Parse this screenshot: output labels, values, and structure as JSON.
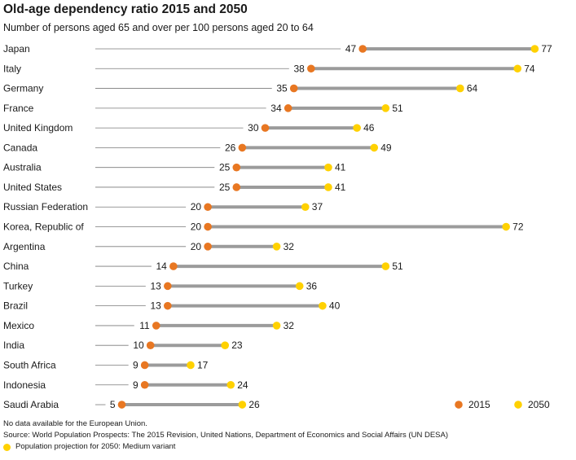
{
  "chart_data": {
    "type": "dot",
    "title": "Old-age dependency ratio 2015 and 2050",
    "subtitle": "Number of persons aged 65 and over per 100 persons aged 20 to 64",
    "series": [
      {
        "name": "2015",
        "color": "#E87722"
      },
      {
        "name": "2050",
        "color": "#FFD100"
      }
    ],
    "rows": [
      {
        "country": "Japan",
        "v2015": 47,
        "v2050": 77
      },
      {
        "country": "Italy",
        "v2015": 38,
        "v2050": 74
      },
      {
        "country": "Germany",
        "v2015": 35,
        "v2050": 64
      },
      {
        "country": "France",
        "v2015": 34,
        "v2050": 51
      },
      {
        "country": "United Kingdom",
        "v2015": 30,
        "v2050": 46
      },
      {
        "country": "Canada",
        "v2015": 26,
        "v2050": 49
      },
      {
        "country": "Australia",
        "v2015": 25,
        "v2050": 41
      },
      {
        "country": "United States",
        "v2015": 25,
        "v2050": 41
      },
      {
        "country": "Russian Federation",
        "v2015": 20,
        "v2050": 37
      },
      {
        "country": "Korea, Republic of",
        "v2015": 20,
        "v2050": 72
      },
      {
        "country": "Argentina",
        "v2015": 20,
        "v2050": 32
      },
      {
        "country": "China",
        "v2015": 14,
        "v2050": 51
      },
      {
        "country": "Turkey",
        "v2015": 13,
        "v2050": 36
      },
      {
        "country": "Brazil",
        "v2015": 13,
        "v2050": 40
      },
      {
        "country": "Mexico",
        "v2015": 11,
        "v2050": 32
      },
      {
        "country": "India",
        "v2015": 10,
        "v2050": 23
      },
      {
        "country": "South Africa",
        "v2015": 9,
        "v2050": 17
      },
      {
        "country": "Indonesia",
        "v2015": 9,
        "v2050": 24
      },
      {
        "country": "Saudi Arabia",
        "v2015": 5,
        "v2050": 26
      }
    ],
    "legend": {
      "position": "bottom-right"
    }
  },
  "footer": {
    "note": "No data available for the European Union.",
    "source": "Source: World Population Prospects: The 2015 Revision, United Nations, Department of Economics and Social Affairs (UN DESA)",
    "projection_note": "Population projection for 2050: Medium variant"
  }
}
